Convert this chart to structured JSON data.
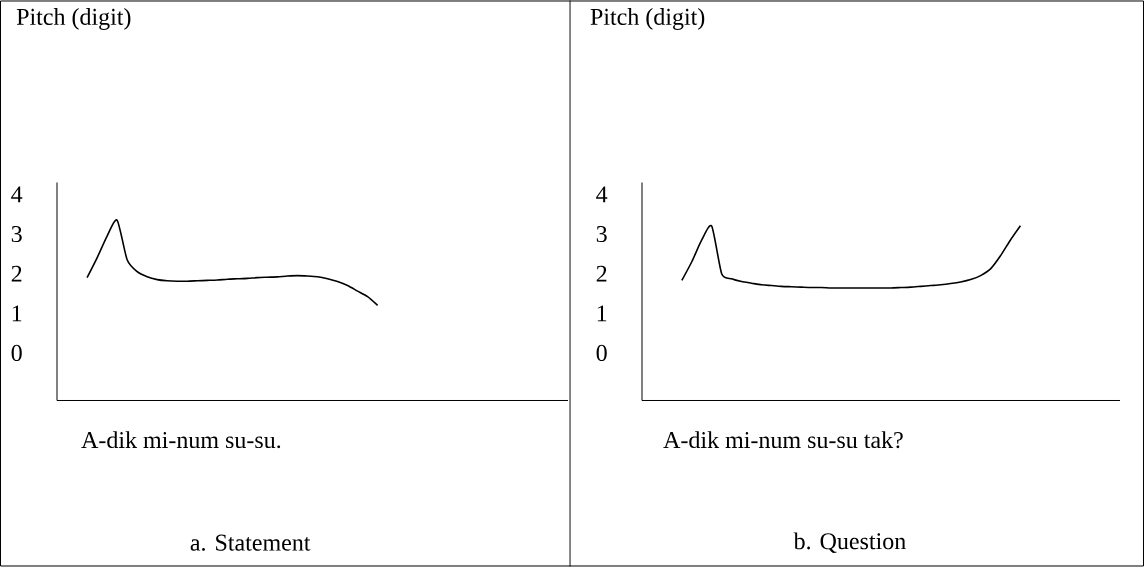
{
  "chart_data": [
    {
      "type": "line",
      "title": "a. Statement",
      "xlabel": "A-dik mi-num su-su.",
      "ylabel": "Pitch (digit)",
      "color": "#000000",
      "marker": "none",
      "line_style": "solid",
      "ylim": [
        -1.2,
        4.3
      ],
      "yticks": [
        0,
        1,
        2,
        3,
        4
      ],
      "categories": [
        null,
        null,
        null,
        null,
        null,
        null,
        null,
        null,
        null,
        null,
        null,
        null,
        null,
        null,
        null,
        null,
        null,
        null,
        null,
        null,
        null,
        null,
        null,
        null,
        null,
        null,
        null,
        null,
        null,
        null,
        null,
        null,
        null,
        null,
        null,
        null,
        null,
        null,
        null,
        null,
        null,
        null,
        null,
        null,
        null,
        null,
        null,
        null,
        null,
        null,
        null,
        null
      ],
      "values": [
        null,
        null,
        null,
        1.9,
        2.4,
        2.95,
        3.35,
        2.35,
        2.05,
        1.92,
        1.85,
        1.82,
        1.81,
        1.81,
        1.82,
        1.83,
        1.84,
        1.86,
        1.87,
        1.88,
        1.9,
        1.91,
        1.92,
        1.94,
        1.95,
        1.94,
        1.92,
        1.87,
        1.8,
        1.7,
        1.56,
        1.42,
        1.2,
        null,
        null,
        null,
        null,
        null,
        null,
        null,
        null,
        null,
        null,
        null,
        null,
        null,
        null,
        null,
        null,
        null,
        null,
        null
      ]
    },
    {
      "type": "line",
      "title": "b. Question",
      "xlabel": "A-dik mi-num su-su tak?",
      "ylabel": "Pitch (digit)",
      "color": "#000000",
      "marker": "none",
      "line_style": "solid",
      "ylim": [
        -1.2,
        4.3
      ],
      "yticks": [
        0,
        1,
        2,
        3,
        4
      ],
      "categories": [
        null,
        null,
        null,
        null,
        null,
        null,
        null,
        null,
        null,
        null,
        null,
        null,
        null,
        null,
        null,
        null,
        null,
        null,
        null,
        null,
        null,
        null,
        null,
        null,
        null,
        null,
        null,
        null,
        null,
        null,
        null,
        null,
        null,
        null,
        null,
        null,
        null,
        null,
        null,
        null,
        null,
        null,
        null,
        null,
        null,
        null,
        null,
        null,
        null
      ],
      "values": [
        null,
        null,
        null,
        null,
        1.83,
        2.3,
        2.85,
        3.2,
        2.0,
        1.87,
        1.8,
        1.76,
        1.72,
        1.7,
        1.68,
        1.67,
        1.66,
        1.65,
        1.65,
        1.64,
        1.64,
        1.64,
        1.64,
        1.64,
        1.64,
        1.64,
        1.65,
        1.66,
        1.68,
        1.7,
        1.72,
        1.75,
        1.79,
        1.85,
        1.95,
        2.12,
        2.45,
        2.85,
        3.21,
        null,
        null,
        null,
        null,
        null,
        null,
        null,
        null,
        null,
        null
      ]
    }
  ]
}
